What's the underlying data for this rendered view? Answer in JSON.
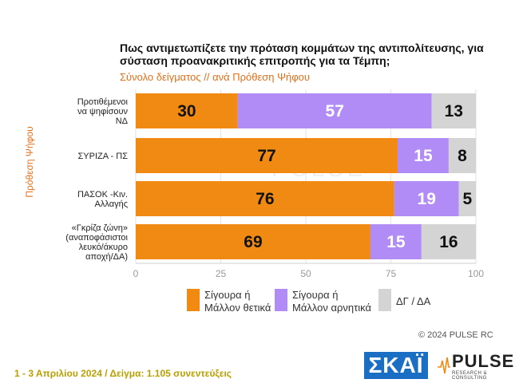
{
  "title": "Πως αντιμετωπίζετε την πρόταση κομμάτων της αντιπολίτευσης, για σύσταση προανακριτικής επιτροπής για τα Τέμπη;",
  "subtitle": "Σύνολο δείγματος // ανά Πρόθεση Ψήφου",
  "copyright": "© 2024 PULSE RC",
  "footer": "1 - 3  Απριλίου 2024  /  Δείγμα:  1.105 συνεντεύξεις",
  "logos": {
    "skai": "ΣΚΑΪ",
    "pulse": "PULSE",
    "pulse_sub": "RESEARCH & CONSULTING"
  },
  "colors": {
    "positive": "#f08a12",
    "negative": "#b18cf6",
    "dk": "#d4d4d4"
  },
  "chart_data": {
    "type": "bar",
    "orientation": "horizontal",
    "stacked": true,
    "ylabel": "Πρόθεση Ψήφου",
    "xlim": [
      0,
      100
    ],
    "xticks": [
      "0",
      "25",
      "50",
      "75",
      "100"
    ],
    "categories": [
      [
        "Προτιθέμενοι",
        "να ψηφίσουν",
        "ΝΔ"
      ],
      [
        "ΣΥΡΙΖΑ - ΠΣ"
      ],
      [
        "ΠΑΣΟΚ -Κιν.",
        "Αλλαγής"
      ],
      [
        "«Γκρίζα ζώνη»",
        "(αναποφάσιστοι",
        "λευκό/άκυρο",
        "αποχή/ΔΑ)"
      ]
    ],
    "series": [
      {
        "name": "Σίγουρα ή\nΜάλλον θετικά",
        "values": [
          30,
          77,
          76,
          69
        ],
        "color": "#f08a12"
      },
      {
        "name": "Σίγουρα ή\nΜάλλον αρνητικά",
        "values": [
          57,
          15,
          19,
          15
        ],
        "color": "#b18cf6"
      },
      {
        "name": "ΔΓ / ΔΑ",
        "values": [
          13,
          8,
          5,
          16
        ],
        "color": "#d4d4d4"
      }
    ],
    "legend_position": "bottom",
    "grid": true
  }
}
